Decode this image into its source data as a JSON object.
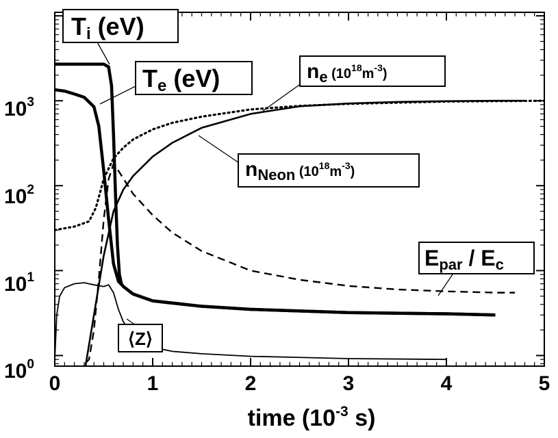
{
  "chart_data": {
    "type": "line",
    "xlabel": {
      "pre": "time (10",
      "sup": "-3",
      "post": " s)"
    },
    "x_ticks": [
      "0",
      "1",
      "2",
      "3",
      "4",
      "5"
    ],
    "y_ticks": [
      {
        "base": "10",
        "exp": "0"
      },
      {
        "base": "10",
        "exp": "1"
      },
      {
        "base": "10",
        "exp": "2"
      },
      {
        "base": "10",
        "exp": "3"
      }
    ],
    "xlim": [
      0,
      5
    ],
    "ylim": [
      0.75,
      11000
    ],
    "yscale": "log",
    "grid": false,
    "series": [
      {
        "name": "T_i (eV)",
        "style": "solid-thick",
        "x": [
          0,
          0.2,
          0.4,
          0.5,
          0.55,
          0.58,
          0.6,
          0.62,
          0.64,
          0.66,
          0.68,
          0.7,
          0.8,
          1.0,
          1.5,
          2.0,
          3.0,
          4.0,
          4.5
        ],
        "y": [
          2700,
          2700,
          2700,
          2700,
          2500,
          1500,
          400,
          80,
          20,
          9,
          7,
          6.5,
          5.3,
          4.4,
          3.8,
          3.5,
          3.2,
          3.1,
          3.0
        ]
      },
      {
        "name": "T_e (eV)",
        "style": "solid-thick",
        "x": [
          0,
          0.1,
          0.2,
          0.3,
          0.4,
          0.45,
          0.5,
          0.55,
          0.6,
          0.65,
          0.7,
          0.8,
          1.0,
          1.5,
          2.0,
          3.0,
          4.0,
          4.5
        ],
        "y": [
          1350,
          1300,
          1200,
          1100,
          850,
          500,
          150,
          40,
          12,
          7.5,
          6.5,
          5.3,
          4.4,
          3.8,
          3.5,
          3.2,
          3.1,
          3.0
        ]
      },
      {
        "name": "n_e (10^18 m^-3)",
        "style": "dotted",
        "x": [
          0,
          0.2,
          0.35,
          0.42,
          0.5,
          0.6,
          0.7,
          0.8,
          1.0,
          1.2,
          1.5,
          2.0,
          2.5,
          3.0,
          4.0,
          5.0
        ],
        "y": [
          30,
          33,
          38,
          55,
          120,
          210,
          280,
          350,
          460,
          550,
          650,
          790,
          870,
          920,
          980,
          1000
        ]
      },
      {
        "name": "n_Neon (10^18 m^-3)",
        "style": "solid",
        "x": [
          0.3,
          0.4,
          0.5,
          0.6,
          0.7,
          0.8,
          1.0,
          1.2,
          1.5,
          2.0,
          2.5,
          3.0,
          3.5,
          4.0,
          4.5,
          4.8
        ],
        "y": [
          0.6,
          3,
          15,
          50,
          90,
          130,
          220,
          320,
          480,
          700,
          860,
          930,
          970,
          990,
          1000,
          1000
        ]
      },
      {
        "name": "E_par / E_c",
        "style": "dashed",
        "x": [
          0,
          0.2,
          0.35,
          0.4,
          0.45,
          0.5,
          0.55,
          0.6,
          0.65,
          0.8,
          1.0,
          1.2,
          1.5,
          2.0,
          2.5,
          3.0,
          3.5,
          4.0,
          4.5,
          4.7
        ],
        "y": [
          0.5,
          0.6,
          0.9,
          2,
          8,
          40,
          120,
          180,
          150,
          80,
          45,
          28,
          17,
          10,
          7.8,
          6.6,
          6.0,
          5.7,
          5.5,
          5.5
        ]
      },
      {
        "name": "⟨Z⟩",
        "style": "solid-thin",
        "x": [
          0,
          0.02,
          0.05,
          0.1,
          0.2,
          0.3,
          0.4,
          0.5,
          0.55,
          0.6,
          0.65,
          0.7,
          0.8,
          0.9,
          1.0,
          1.2,
          1.5,
          2.0,
          2.5,
          3.0,
          3.5,
          4.0
        ],
        "y": [
          0.9,
          3,
          5,
          6.3,
          7.0,
          7.2,
          6.8,
          6.5,
          6.8,
          5.5,
          3.5,
          2.5,
          1.7,
          1.4,
          1.25,
          1.12,
          1.05,
          0.98,
          0.95,
          0.92,
          0.91,
          0.9
        ]
      }
    ],
    "labels": {
      "ti": {
        "main": "T",
        "sub": "i",
        "tail": " (eV)"
      },
      "te": {
        "main": "T",
        "sub": "e",
        "tail": " (eV)"
      },
      "ne": {
        "main": "n",
        "sub": "e",
        "tail1": " (10",
        "sup1": "18",
        "tail2": "m",
        "sup2": "-3",
        "tail3": ")"
      },
      "nneon": {
        "main": "n",
        "sub": "Neon",
        "tail1": " (10",
        "sup1": "18",
        "tail2": "m",
        "sup2": "-3",
        "tail3": ")"
      },
      "epar": {
        "m1": "E",
        "s1": "par",
        "mid": " / E",
        "s2": "c"
      },
      "z": {
        "text": "⟨Z⟩"
      }
    }
  }
}
